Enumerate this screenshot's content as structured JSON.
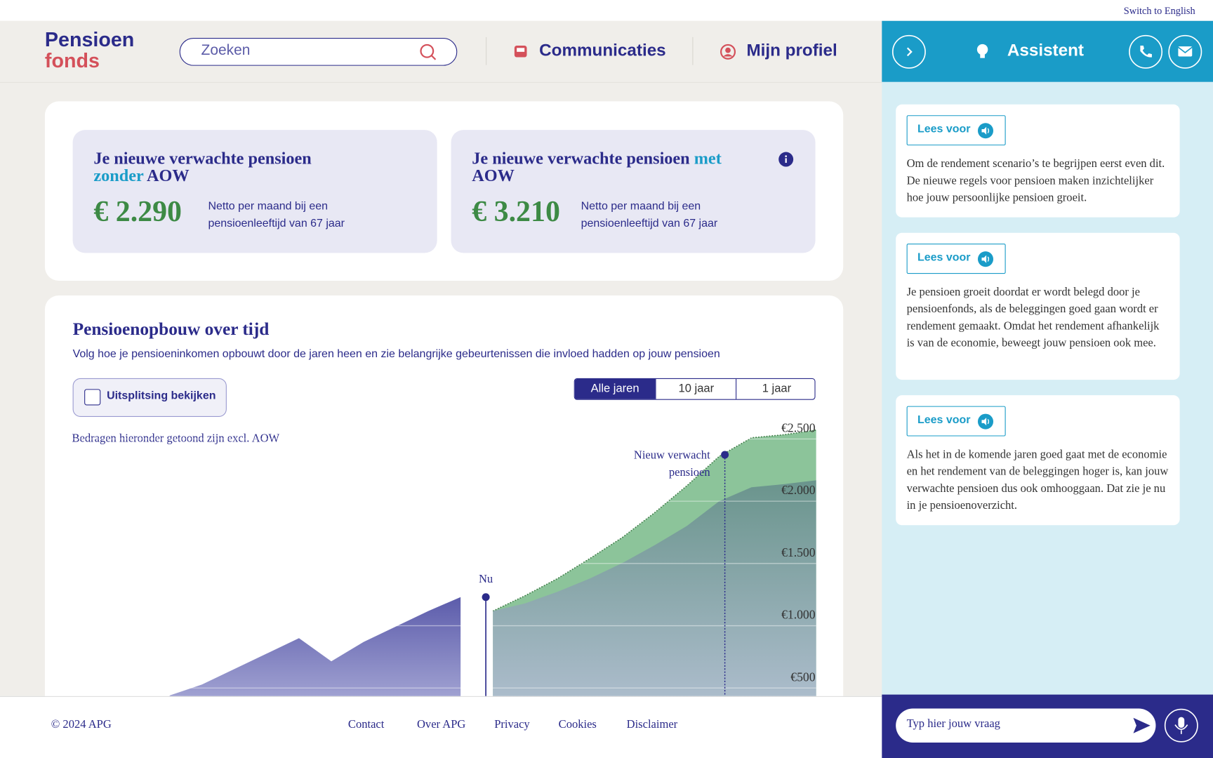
{
  "top_bar": {
    "language_switch": "Switch to English"
  },
  "header": {
    "logo": [
      "Pensioen",
      "fonds"
    ],
    "search_placeholder": "Zoeken",
    "nav": [
      "Communicaties",
      "Mijn profiel"
    ]
  },
  "summary": {
    "cards": [
      {
        "title": [
          "Je nieuwe verwachte pensioen",
          "zonder",
          "AOW"
        ],
        "amount": "€ 2.290",
        "description": "Netto per maand bij een pensioenleeftijd van 67 jaar"
      },
      {
        "title": [
          "Je nieuwe verwachte pensioen",
          "met",
          "AOW"
        ],
        "amount": "€ 3.210",
        "description": "Netto per maand bij een pensioenleeftijd van 67 jaar"
      }
    ]
  },
  "chart_section": {
    "title": "Pensioenopbouw over tijd",
    "subtitle": "Volg hoe je pensioeninkomen opbouwt door de jaren heen en zie belangrijke gebeurtenissen die invloed hadden op jouw pensioen",
    "toggle": "Uitsplitsing bekijken",
    "periods": [
      "Alle jaren",
      "10 jaar",
      "1 jaar"
    ],
    "note": "Bedragen hieronder getoond zijn excl. AOW"
  },
  "chart_data": {
    "type": "area",
    "categories": [
      null,
      null,
      null,
      null,
      null,
      null,
      null,
      null,
      null,
      null,
      null,
      null,
      null,
      null,
      null,
      null,
      null,
      null,
      null,
      null,
      null,
      null,
      null,
      null
    ],
    "series": [
      {
        "color": "#5c5cab",
        "values": [
          null,
          null,
          null,
          440,
          528,
          652,
          776,
          900,
          714,
          870,
          994,
          1118,
          1230,
          null,
          null,
          null,
          null,
          null,
          null,
          null,
          null,
          null,
          null,
          null
        ]
      },
      {
        "color": "#8cc49a",
        "values": [
          null,
          null,
          null,
          null,
          null,
          null,
          null,
          null,
          null,
          null,
          null,
          null,
          null,
          1118,
          1242,
          1379,
          1540,
          1708,
          1907,
          2124,
          2360,
          2509,
          2534,
          2571
        ]
      },
      {
        "color": "#648c8a",
        "values": [
          null,
          null,
          null,
          null,
          null,
          null,
          null,
          null,
          null,
          null,
          null,
          null,
          null,
          1118,
          1180,
          1273,
          1379,
          1503,
          1646,
          1801,
          2000,
          2112,
          2137,
          2168
        ]
      }
    ],
    "ylim": [
      0,
      2600
    ],
    "yticks": [
      {
        "value": 500,
        "label": "€500"
      },
      {
        "value": 1000,
        "label": "€1.000"
      },
      {
        "value": 1500,
        "label": "€1.500"
      },
      {
        "value": 2000,
        "label": "€2.000"
      },
      {
        "value": 2500,
        "label": "€2.500"
      }
    ],
    "grid": true,
    "annotations": [
      "Nu",
      "Nieuw verwacht pensioen"
    ]
  },
  "assistant": {
    "title": "Assistent",
    "messages": [
      {
        "button": "Lees voor",
        "text": "Om de rendement scenario’s te begrijpen eerst even dit. De nieuwe regels voor pensioen maken inzichtelijker hoe jouw persoonlijke pensioen groeit."
      },
      {
        "button": "Lees voor",
        "text": "Je pensioen groeit doordat er wordt belegd door je pensioenfonds, als de beleggingen goed gaan wordt er rendement gemaakt. Omdat het rendement afhankelijk is van de economie, beweegt jouw pensioen ook mee."
      },
      {
        "button": "Lees voor",
        "text": "Als het in de komende jaren goed gaat met de economie en het rendement van de beleggingen hoger is, kan jouw verwachte pensioen dus ook omhooggaan. Dat zie je nu in je pensioenoverzicht."
      }
    ],
    "input_placeholder": "Typ hier jouw vraag"
  },
  "footer": {
    "copyright": "© 2024 APG",
    "links": [
      "Contact",
      "Over APG",
      "Privacy",
      "Cookies",
      "Disclaimer"
    ]
  }
}
